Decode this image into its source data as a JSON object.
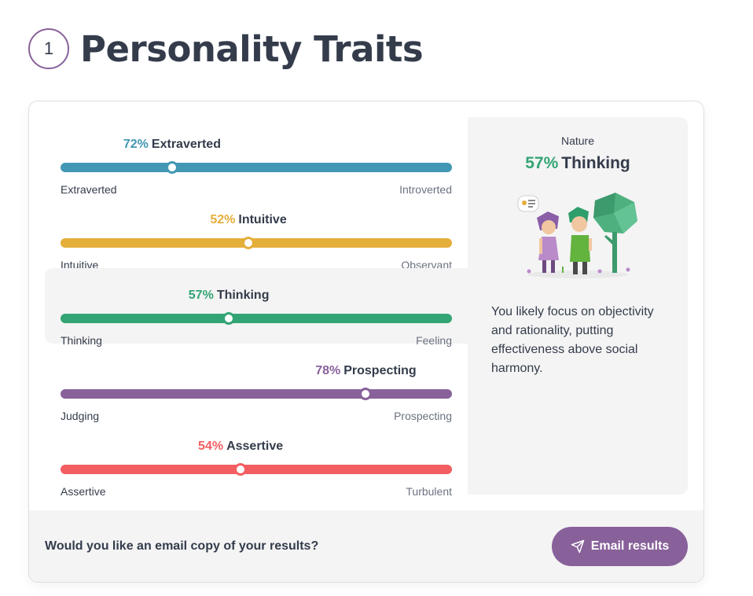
{
  "header": {
    "step": "1",
    "title": "Personality Traits"
  },
  "traits": [
    {
      "pct": "72%",
      "label": "Extraverted",
      "value": 0.72,
      "position": 0.285,
      "left_pole": "Extraverted",
      "right_pole": "Introverted",
      "color": "#4298b4",
      "active": false
    },
    {
      "pct": "52%",
      "label": "Intuitive",
      "value": 0.52,
      "position": 0.48,
      "left_pole": "Intuitive",
      "right_pole": "Observant",
      "color": "#e4ae3a",
      "active": false
    },
    {
      "pct": "57%",
      "label": "Thinking",
      "value": 0.57,
      "position": 0.43,
      "left_pole": "Thinking",
      "right_pole": "Feeling",
      "color": "#33a474",
      "active": true
    },
    {
      "pct": "78%",
      "label": "Prospecting",
      "value": 0.78,
      "position": 0.78,
      "left_pole": "Judging",
      "right_pole": "Prospecting",
      "color": "#88619a",
      "active": false
    },
    {
      "pct": "54%",
      "label": "Assertive",
      "value": 0.54,
      "position": 0.46,
      "left_pole": "Assertive",
      "right_pole": "Turbulent",
      "color": "#f25e62",
      "active": false
    }
  ],
  "panel": {
    "category": "Nature",
    "pct": "57%",
    "label": "Thinking",
    "description": "You likely focus on objectivity and rationality, putting effectiveness above social harmony.",
    "illustration_icon": "thinking-characters-illustration"
  },
  "footer": {
    "prompt": "Would you like an email copy of your results?",
    "button_label": "Email results",
    "button_icon": "paper-plane-icon"
  }
}
